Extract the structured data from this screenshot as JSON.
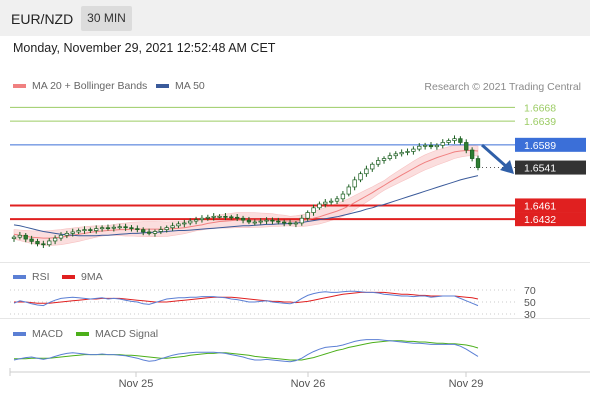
{
  "header": {
    "symbol": "EUR/NZD",
    "timeframe": "30 MIN"
  },
  "datetime": "Monday, November 29, 2021 12:52:48 AM CET",
  "legend": {
    "ma20_bb": "MA 20 + Bollinger Bands",
    "ma50": "MA 50",
    "rsi": "RSI",
    "rsi_ma": "9MA",
    "macd": "MACD",
    "macd_signal": "MACD Signal"
  },
  "credit": "Research © 2021 Trading Central",
  "colors": {
    "ma20": "#f08080",
    "ma50": "#3a5a9a",
    "bollinger_fill": "#fbd9d9",
    "candle": "#2e7d32",
    "resistance": "#9ccc65",
    "pivot": "#3b6fd8",
    "support": "#e02020",
    "current_price": "#333333",
    "arrow": "#2f5fa8",
    "rsi": "#5b7fd4",
    "rsi_ma": "#e02020",
    "macd": "#5b7fd4",
    "macd_signal": "#4caf1a"
  },
  "price_levels": [
    {
      "value": "1.6668",
      "kind": "resistance"
    },
    {
      "value": "1.6639",
      "kind": "resistance"
    },
    {
      "value": "1.6589",
      "kind": "pivot"
    },
    {
      "value": "1.6541",
      "kind": "current"
    },
    {
      "value": "1.6461",
      "kind": "support"
    },
    {
      "value": "1.6432",
      "kind": "support"
    }
  ],
  "rsi_levels": [
    "70",
    "50",
    "30"
  ],
  "x_labels": [
    "Nov 25",
    "Nov 26",
    "Nov 29"
  ],
  "chart_data": {
    "type": "candlestick",
    "forecast_direction": "down",
    "x_ticks": [
      "Nov 25",
      "Nov 26",
      "Nov 29"
    ],
    "close": [
      1.6394,
      1.6398,
      1.639,
      1.6385,
      1.638,
      1.6378,
      1.6386,
      1.6392,
      1.6398,
      1.6402,
      1.6405,
      1.6408,
      1.641,
      1.6408,
      1.6412,
      1.6414,
      1.6413,
      1.6415,
      1.6416,
      1.6414,
      1.6412,
      1.641,
      1.6405,
      1.6402,
      1.6406,
      1.641,
      1.6414,
      1.6418,
      1.6422,
      1.6424,
      1.6428,
      1.6431,
      1.6434,
      1.6436,
      1.6438,
      1.6438,
      1.6437,
      1.6436,
      1.6434,
      1.643,
      1.6426,
      1.6426,
      1.6428,
      1.643,
      1.6428,
      1.6426,
      1.6424,
      1.6422,
      1.6424,
      1.6434,
      1.6446,
      1.6456,
      1.6464,
      1.6468,
      1.647,
      1.6475,
      1.6485,
      1.65,
      1.6515,
      1.6528,
      1.6538,
      1.6548,
      1.6556,
      1.656,
      1.6566,
      1.657,
      1.6573,
      1.6575,
      1.658,
      1.6586,
      1.6588,
      1.6585,
      1.6588,
      1.6594,
      1.6598,
      1.6602,
      1.6594,
      1.6578,
      1.656,
      1.6541
    ],
    "ma20": [
      1.64,
      1.6398,
      1.6396,
      1.6394,
      1.6393,
      1.6392,
      1.6392,
      1.6393,
      1.6394,
      1.6396,
      1.6398,
      1.64,
      1.6402,
      1.6404,
      1.6406,
      1.6407,
      1.6408,
      1.6409,
      1.641,
      1.641,
      1.6411,
      1.6411,
      1.6411,
      1.6411,
      1.6411,
      1.6411,
      1.6411,
      1.6412,
      1.6413,
      1.6414,
      1.6416,
      1.6418,
      1.642,
      1.6423,
      1.6425,
      1.6427,
      1.6428,
      1.6429,
      1.643,
      1.643,
      1.643,
      1.643,
      1.643,
      1.643,
      1.643,
      1.6429,
      1.6429,
      1.6428,
      1.6428,
      1.6429,
      1.6431,
      1.6434,
      1.6437,
      1.6441,
      1.6445,
      1.6449,
      1.6454,
      1.646,
      1.6467,
      1.6474,
      1.6481,
      1.6488,
      1.6496,
      1.6503,
      1.6511,
      1.6518,
      1.6525,
      1.6532,
      1.6539,
      1.6546,
      1.6552,
      1.6557,
      1.6562,
      1.6566,
      1.657,
      1.6574,
      1.6576,
      1.6577,
      1.6577,
      1.6576
    ],
    "ma50": [
      1.642,
      1.6418,
      1.6415,
      1.6412,
      1.6409,
      1.6406,
      1.6404,
      1.6402,
      1.64,
      1.6399,
      1.6398,
      1.6397,
      1.6397,
      1.6397,
      1.6397,
      1.6398,
      1.6398,
      1.6399,
      1.64,
      1.6401,
      1.6402,
      1.6402,
      1.6403,
      1.6404,
      1.6404,
      1.6405,
      1.6406,
      1.6407,
      1.6408,
      1.6408,
      1.6409,
      1.641,
      1.6411,
      1.6412,
      1.6413,
      1.6414,
      1.6415,
      1.6416,
      1.6417,
      1.6418,
      1.6418,
      1.6419,
      1.642,
      1.6421,
      1.6421,
      1.6422,
      1.6422,
      1.6423,
      1.6424,
      1.6425,
      1.6427,
      1.6429,
      1.6431,
      1.6433,
      1.6435,
      1.6437,
      1.644,
      1.6443,
      1.6446,
      1.6449,
      1.6453,
      1.6456,
      1.646,
      1.6463,
      1.6467,
      1.6471,
      1.6475,
      1.6479,
      1.6483,
      1.6487,
      1.6491,
      1.6495,
      1.6499,
      1.6503,
      1.6507,
      1.6511,
      1.6515,
      1.6518,
      1.6521,
      1.6524
    ],
    "rsi": [
      48,
      52,
      50,
      47,
      45,
      44,
      49,
      53,
      56,
      57,
      58,
      57,
      56,
      55,
      56,
      57,
      55,
      56,
      55,
      53,
      51,
      50,
      47,
      46,
      49,
      52,
      55,
      56,
      57,
      57,
      58,
      58,
      59,
      59,
      59,
      58,
      57,
      55,
      54,
      52,
      50,
      50,
      51,
      52,
      50,
      49,
      48,
      47,
      50,
      56,
      61,
      64,
      66,
      67,
      66,
      66,
      67,
      68,
      68,
      67,
      66,
      66,
      65,
      63,
      62,
      61,
      60,
      60,
      59,
      60,
      60,
      58,
      59,
      60,
      60,
      60,
      56,
      52,
      48,
      44
    ],
    "rsi_ma": [
      50,
      50,
      50,
      49,
      48,
      48,
      48,
      49,
      50,
      51,
      52,
      53,
      54,
      55,
      55,
      56,
      56,
      56,
      56,
      55,
      54,
      53,
      52,
      51,
      50,
      50,
      50,
      51,
      52,
      53,
      54,
      55,
      56,
      57,
      58,
      58,
      58,
      58,
      57,
      56,
      55,
      54,
      53,
      52,
      51,
      51,
      50,
      50,
      49,
      50,
      51,
      53,
      55,
      57,
      59,
      61,
      63,
      64,
      65,
      66,
      66,
      66,
      66,
      66,
      65,
      64,
      63,
      63,
      62,
      61,
      61,
      60,
      60,
      60,
      60,
      60,
      59,
      58,
      57,
      55
    ],
    "macd": [
      -0.5,
      -0.3,
      -0.1,
      0.0,
      -0.2,
      -0.4,
      -0.2,
      0.1,
      0.4,
      0.6,
      0.7,
      0.6,
      0.5,
      0.4,
      0.4,
      0.5,
      0.4,
      0.4,
      0.3,
      0.2,
      0.0,
      -0.2,
      -0.5,
      -0.7,
      -0.6,
      -0.3,
      0.0,
      0.3,
      0.5,
      0.6,
      0.7,
      0.8,
      0.8,
      0.8,
      0.8,
      0.7,
      0.6,
      0.4,
      0.2,
      0.0,
      -0.3,
      -0.5,
      -0.5,
      -0.4,
      -0.5,
      -0.6,
      -0.7,
      -0.8,
      -0.6,
      -0.2,
      0.4,
      0.9,
      1.3,
      1.6,
      1.7,
      1.8,
      2.0,
      2.3,
      2.6,
      2.8,
      2.9,
      2.9,
      2.9,
      2.8,
      2.7,
      2.6,
      2.5,
      2.4,
      2.3,
      2.3,
      2.2,
      2.1,
      2.1,
      2.1,
      2.1,
      2.1,
      1.8,
      1.3,
      0.7,
      0.1
    ],
    "macd_signal": [
      -0.3,
      -0.3,
      -0.3,
      -0.2,
      -0.2,
      -0.2,
      -0.2,
      -0.1,
      0.0,
      0.1,
      0.2,
      0.3,
      0.4,
      0.4,
      0.4,
      0.4,
      0.4,
      0.4,
      0.4,
      0.3,
      0.3,
      0.2,
      0.1,
      0.0,
      -0.1,
      -0.2,
      -0.2,
      -0.1,
      0.0,
      0.1,
      0.3,
      0.4,
      0.5,
      0.6,
      0.6,
      0.7,
      0.7,
      0.6,
      0.5,
      0.4,
      0.3,
      0.1,
      0.0,
      -0.1,
      -0.2,
      -0.3,
      -0.4,
      -0.5,
      -0.5,
      -0.5,
      -0.3,
      -0.1,
      0.2,
      0.5,
      0.8,
      1.1,
      1.3,
      1.6,
      1.8,
      2.0,
      2.2,
      2.4,
      2.5,
      2.6,
      2.7,
      2.7,
      2.7,
      2.6,
      2.6,
      2.5,
      2.5,
      2.4,
      2.3,
      2.3,
      2.2,
      2.2,
      2.1,
      2.0,
      1.8,
      1.5
    ]
  }
}
